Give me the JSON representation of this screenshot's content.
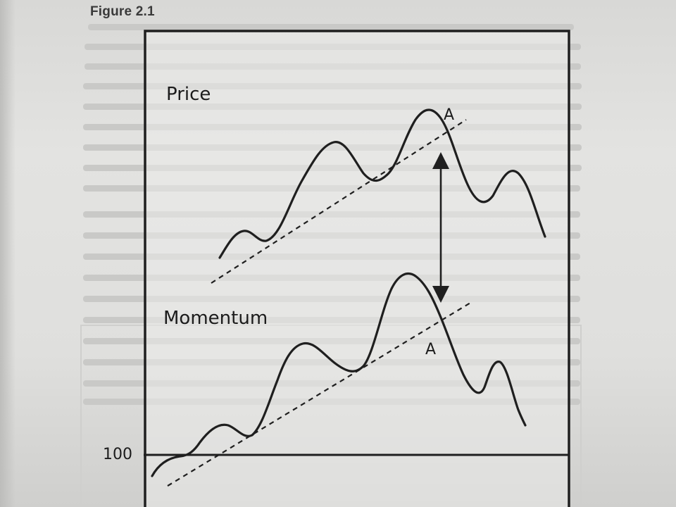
{
  "figure": {
    "title": "Figure 2.1"
  },
  "diagram": {
    "price_label": "Price",
    "momentum_label": "Momentum",
    "price_peak_label": "A",
    "momentum_peak_label": "A",
    "baseline_label": "100"
  },
  "colors": {
    "ink": "#1f1f1f",
    "paper": "#e0e0de",
    "frame_fill": "#ebebea"
  },
  "icons": {
    "divergence_arrow": "double-headed-arrow-icon"
  }
}
